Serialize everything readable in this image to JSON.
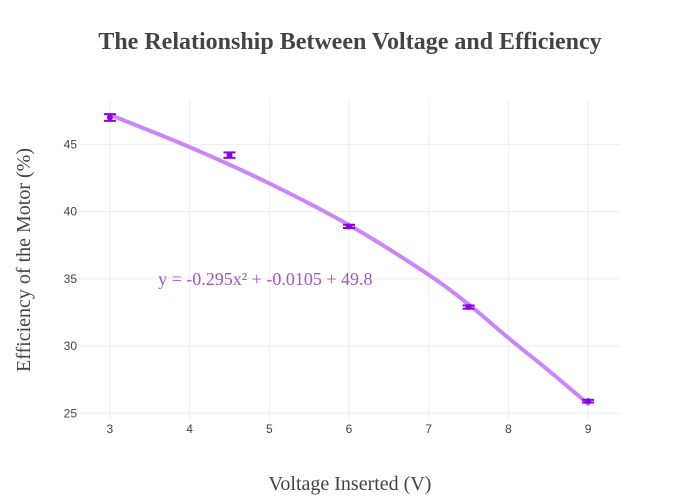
{
  "chart_data": {
    "type": "scatter",
    "title": "The Relationship Between Voltage and Efficiency",
    "xlabel": "Voltage Inserted (V)",
    "ylabel": "Efficiency of the Motor (%)",
    "xlim": [
      2.6,
      9.4
    ],
    "ylim": [
      24.5,
      48.3
    ],
    "xticks": [
      3,
      4,
      5,
      6,
      7,
      8,
      9
    ],
    "yticks": [
      25,
      30,
      35,
      40,
      45
    ],
    "grid": true,
    "series": [
      {
        "points": [
          {
            "x": 3.0,
            "y": 47.0,
            "err": 0.25
          },
          {
            "x": 4.5,
            "y": 44.2,
            "err": 0.2
          },
          {
            "x": 6.0,
            "y": 38.9,
            "err": 0.12
          },
          {
            "x": 7.5,
            "y": 32.9,
            "err": 0.12
          },
          {
            "x": 9.0,
            "y": 25.9,
            "err": 0.1
          }
        ],
        "marker_color": "#8b00e6"
      },
      {
        "type": "line",
        "fit_x": [
          3.0,
          4.0,
          5.0,
          6.0,
          7.0,
          7.5,
          8.0,
          8.5,
          9.0
        ],
        "fit_y": [
          47.2,
          44.8,
          42.1,
          39.0,
          35.3,
          33.1,
          30.6,
          28.2,
          25.7
        ],
        "line_color": "#cc85f7"
      }
    ],
    "annotations": [
      {
        "text": "y = -0.295x² + -0.0105 + 49.8",
        "x": 4.95,
        "y": 35.0,
        "color": "#9b59c9"
      }
    ]
  }
}
